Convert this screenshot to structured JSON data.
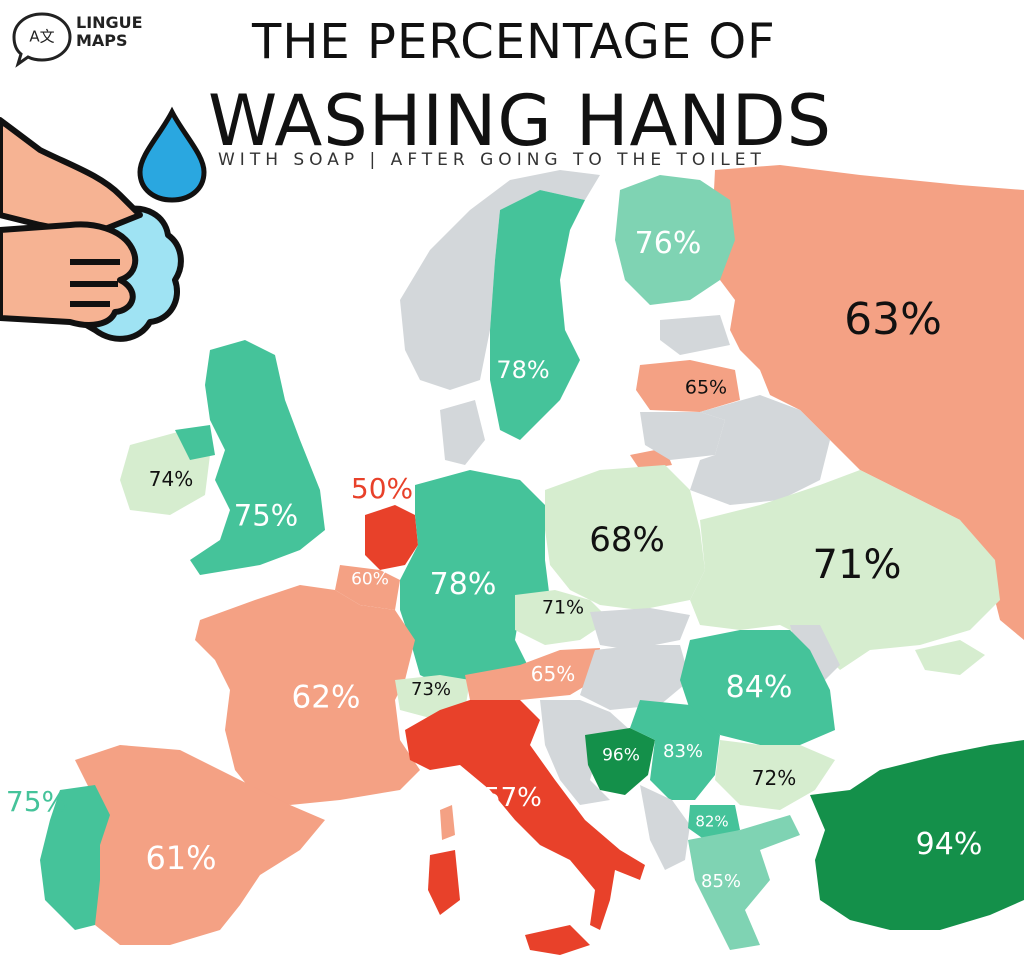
{
  "header": {
    "logo_line1": "LINGUE",
    "logo_line2": "MAPS",
    "logo_glyphs": "A文",
    "title_line1": "THE PERCENTAGE OF",
    "title_line2": "WASHING HANDS",
    "subtitle": "WITH SOAP | AFTER GOING TO THE TOILET"
  },
  "colors": {
    "red": "#e8412a",
    "salmon": "#f4a184",
    "light_green": "#d6edcf",
    "teal": "#45c39a",
    "dark_green": "#14904a",
    "no_data": "#d3d7da",
    "water_drop": "#2aa7e0",
    "skin": "#f6b393",
    "soap": "#9fe3f3"
  },
  "icons": [
    "water-drop-icon",
    "washing-hands-icon",
    "translate-icon"
  ],
  "countries": [
    {
      "name": "Russia",
      "value": "63%"
    },
    {
      "name": "Finland",
      "value": "76%"
    },
    {
      "name": "Sweden",
      "value": "78%"
    },
    {
      "name": "Latvia",
      "value": "65%"
    },
    {
      "name": "Ireland",
      "value": "74%"
    },
    {
      "name": "United Kingdom",
      "value": "75%"
    },
    {
      "name": "Netherlands",
      "value": "50%"
    },
    {
      "name": "Belgium",
      "value": "60%"
    },
    {
      "name": "Germany",
      "value": "78%"
    },
    {
      "name": "Poland",
      "value": "68%"
    },
    {
      "name": "Ukraine",
      "value": "71%"
    },
    {
      "name": "Czech Republic",
      "value": "71%"
    },
    {
      "name": "France",
      "value": "62%"
    },
    {
      "name": "Switzerland",
      "value": "73%"
    },
    {
      "name": "Austria",
      "value": "65%"
    },
    {
      "name": "Romania",
      "value": "84%"
    },
    {
      "name": "Bosnia and Herzegovina",
      "value": "96%"
    },
    {
      "name": "Serbia",
      "value": "83%"
    },
    {
      "name": "Bulgaria",
      "value": "72%"
    },
    {
      "name": "Italy",
      "value": "57%"
    },
    {
      "name": "North Macedonia",
      "value": "82%"
    },
    {
      "name": "Greece",
      "value": "85%"
    },
    {
      "name": "Turkey",
      "value": "94%"
    },
    {
      "name": "Portugal",
      "value": "75%"
    },
    {
      "name": "Spain",
      "value": "61%"
    }
  ]
}
